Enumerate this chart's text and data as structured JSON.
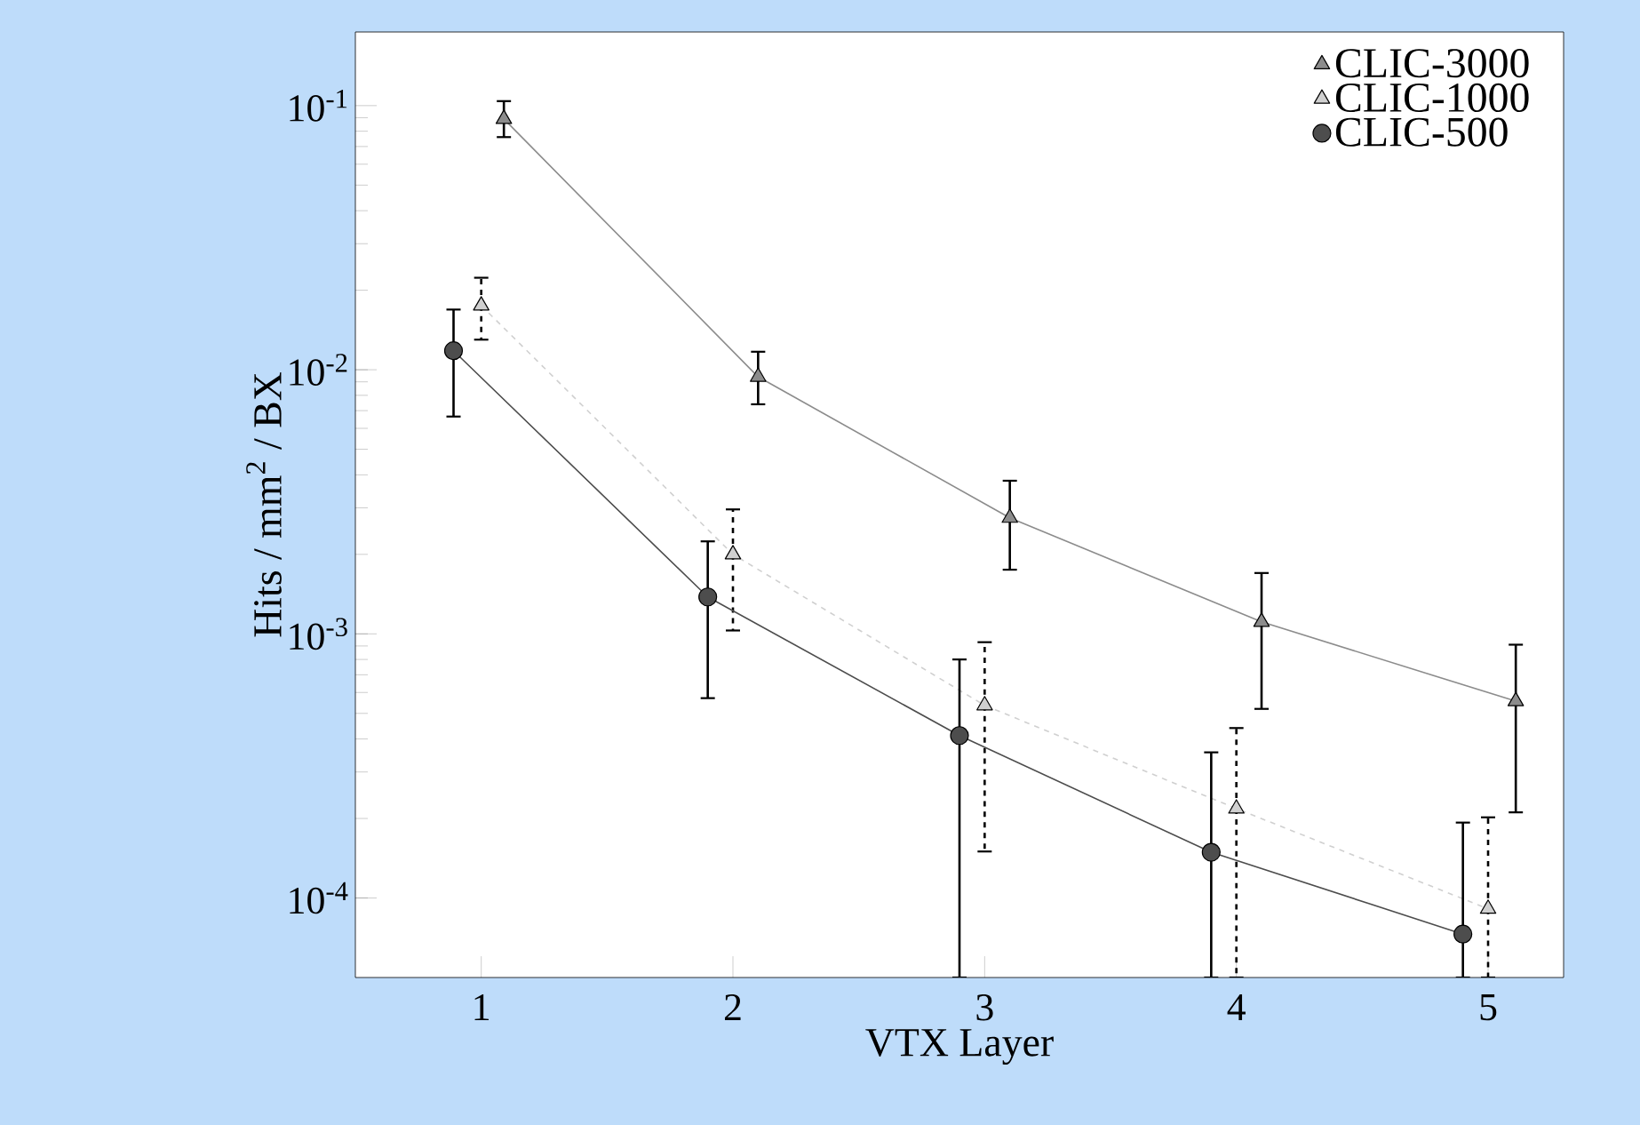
{
  "chart_data": {
    "type": "line",
    "xlabel": "VTX Layer",
    "ylabel": "Hits / mm$^{2}$ / BX",
    "log": "y",
    "xlim": [
      0.5,
      5.3
    ],
    "ylim": [
      5e-05,
      0.19
    ],
    "xticks": [
      1,
      2,
      3,
      4,
      5
    ],
    "yticks": [
      {
        "value": 0.0001,
        "label": "10$^{-4}$"
      },
      {
        "value": 0.001,
        "label": "10$^{-3}$"
      },
      {
        "value": 0.01,
        "label": "10$^{-2}$"
      },
      {
        "value": 0.1,
        "label": "10$^{-1}$"
      }
    ],
    "legend": "top right",
    "grid": false,
    "series": [
      {
        "name": "CLIC-3000",
        "color": "#8c8c8c",
        "marker": "triangle",
        "line_style": "solid",
        "x": [
          1.09,
          2.1,
          3.1,
          4.1,
          5.11
        ],
        "values": [
          0.089,
          0.0094,
          0.00275,
          0.00111,
          0.000556
        ],
        "errors": [
          [
            0.076,
            0.104
          ],
          [
            0.0074,
            0.0117
          ],
          [
            0.00175,
            0.0038
          ],
          [
            0.00052,
            0.0017
          ],
          [
            0.000211,
            0.00091
          ]
        ]
      },
      {
        "name": "CLIC-1000",
        "color": "#d0d0d0",
        "marker": "triangle",
        "line_style": "dashed",
        "x": [
          1,
          2,
          3,
          4,
          5
        ],
        "values": [
          0.0175,
          0.002,
          0.000536,
          0.000218,
          9.1e-05
        ],
        "errors": [
          [
            0.013,
            0.0223
          ],
          [
            0.00103,
            0.00296
          ],
          [
            0.00015,
            0.00093
          ],
          [
            5e-05,
            0.00044
          ],
          [
            5e-05,
            0.000202
          ]
        ]
      },
      {
        "name": "CLIC-500",
        "color": "#4d4d4d",
        "marker": "circle",
        "line_style": "solid",
        "x": [
          0.89,
          1.9,
          2.9,
          3.9,
          4.9
        ],
        "values": [
          0.0118,
          0.00138,
          0.000412,
          0.000149,
          7.3e-05
        ],
        "errors": [
          [
            0.00665,
            0.0169
          ],
          [
            0.000571,
            0.00224
          ],
          [
            5e-05,
            0.0008
          ],
          [
            5e-05,
            0.000356
          ],
          [
            5e-05,
            0.000193
          ]
        ]
      }
    ]
  }
}
